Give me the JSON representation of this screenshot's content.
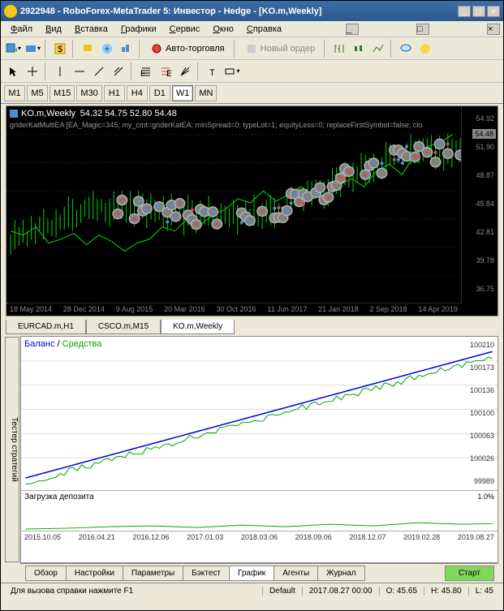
{
  "title": "2922948 - RoboForex-MetaTrader 5: Инвестор - Hedge - [KO.m,Weekly]",
  "menu": [
    "Файл",
    "Вид",
    "Вставка",
    "Графики",
    "Сервис",
    "Окно",
    "Справка"
  ],
  "toolbar2": {
    "autotrade": "Авто-торговля",
    "neworder": "Новый ордер"
  },
  "timeframes": [
    "M1",
    "M5",
    "M15",
    "M30",
    "H1",
    "H4",
    "D1",
    "W1",
    "MN"
  ],
  "tf_active": "W1",
  "chart": {
    "symbol": "KO.m,Weekly",
    "ohlc": "54.32 54.75 52.80 54.48",
    "indicator": "griderKatMultiEA [EA_Magic=345; my_cmt=griderKatEA; minSpread=0; typeLot=1; equityLess=0; replaceFirstSymbol=false; clo",
    "ylabels": [
      "54.92",
      "51.90",
      "48.87",
      "45.84",
      "42.81",
      "39.78",
      "36.75"
    ],
    "ybadge": "54.48",
    "xlabels": [
      "18 May 2014",
      "28 Dec 2014",
      "9 Aug 2015",
      "20 Mar 2016",
      "30 Oct 2016",
      "11 Jun 2017",
      "21 Jan 2018",
      "2 Sep 2018",
      "14 Apr 2019"
    ],
    "colors": {
      "bg": "#000000",
      "candle": "#00ff00",
      "marker_fill": "#808080",
      "marker_border": "#b0b0b0"
    }
  },
  "charttabs": [
    {
      "label": "EURCAD.m,H1",
      "active": false
    },
    {
      "label": "CSCO.m,M15",
      "active": false
    },
    {
      "label": "KO.m,Weekly",
      "active": true
    }
  ],
  "tester": {
    "side": "Тестер стратегий",
    "legend_balance": "Баланс",
    "legend_sep": " / ",
    "legend_equity": "Средства",
    "ylabels": [
      "100210",
      "100173",
      "100136",
      "100100",
      "100063",
      "100026",
      "99989"
    ],
    "deposit_label": "Загрузка депозита",
    "deposit_pct": "1.0%",
    "xlabels": [
      "2015.10.05",
      "2016.04.21",
      "2016.12.06",
      "2017.01.03",
      "2018.03.06",
      "2018.09.06",
      "2018.12.07",
      "2019.02.28",
      "2019.08.27"
    ],
    "colors": {
      "balance": "#0000dd",
      "equity": "#00aa00"
    }
  },
  "testertabs": [
    "Обзор",
    "Настройки",
    "Параметры",
    "Бэктест",
    "График",
    "Агенты",
    "Журнал"
  ],
  "testertab_active": "График",
  "start_label": "Старт",
  "status": {
    "help": "Для вызова справки нажмите F1",
    "mode": "Default",
    "date": "2017.08.27 00:00",
    "o": "O: 45.65",
    "h": "H: 45.80",
    "l": "L: 45"
  }
}
